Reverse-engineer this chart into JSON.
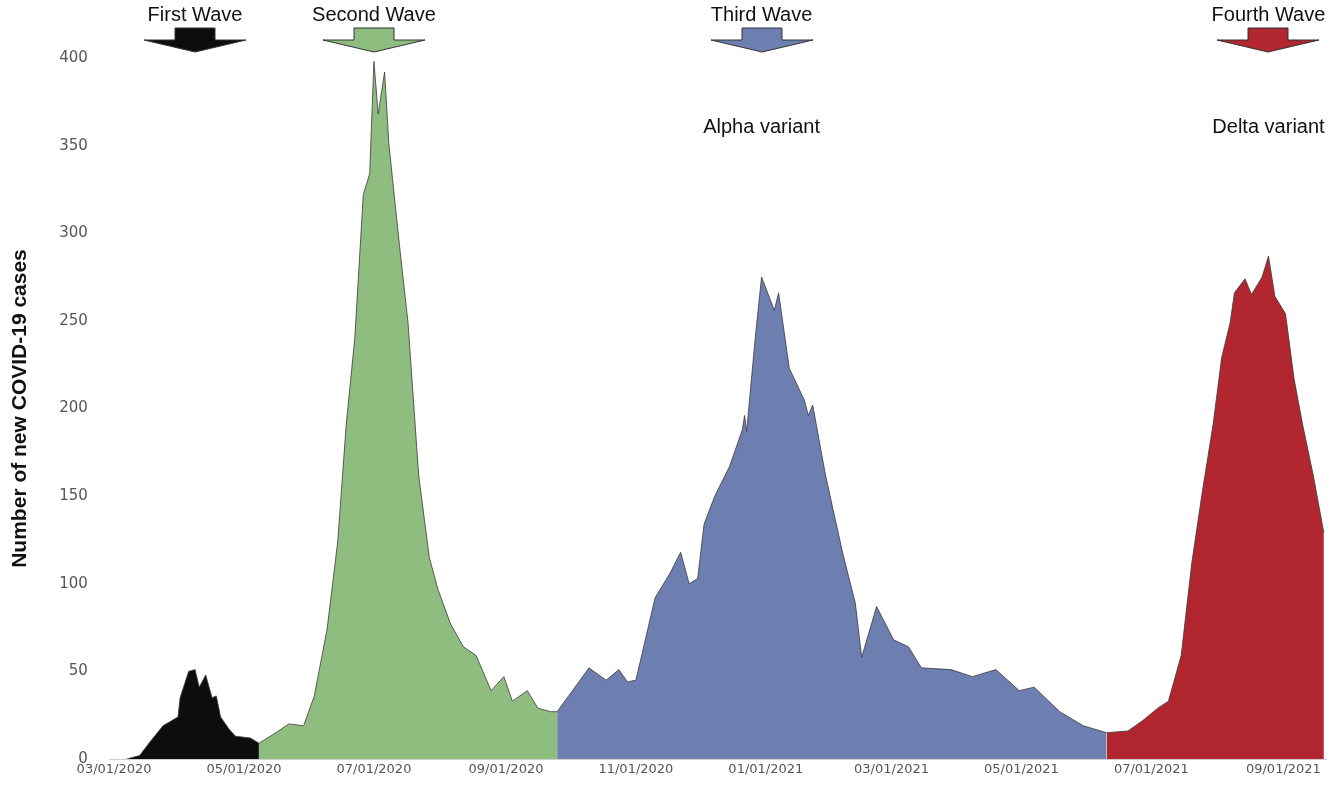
{
  "chart_data": {
    "type": "area",
    "ylabel": "Number of new COVID-19 cases",
    "xlim": [
      "2020-02-28",
      "2021-09-21"
    ],
    "ylim": [
      0,
      400
    ],
    "xticks": [
      {
        "value": "2020-03-01",
        "label": "03/01/2020"
      },
      {
        "value": "2020-05-01",
        "label": "05/01/2020"
      },
      {
        "value": "2020-07-01",
        "label": "07/01/2020"
      },
      {
        "value": "2020-09-01",
        "label": "09/01/2020"
      },
      {
        "value": "2020-11-01",
        "label": "11/01/2020"
      },
      {
        "value": "2021-01-01",
        "label": "01/01/2021"
      },
      {
        "value": "2021-03-01",
        "label": "03/01/2021"
      },
      {
        "value": "2021-05-01",
        "label": "05/01/2021"
      },
      {
        "value": "2021-07-01",
        "label": "07/01/2021"
      },
      {
        "value": "2021-09-01",
        "label": "09/01/2021"
      }
    ],
    "yticks": [
      0,
      50,
      100,
      150,
      200,
      250,
      300,
      350,
      400
    ],
    "grid": false,
    "marker": "none",
    "annotations": [
      "First Wave",
      "Second Wave",
      "Third Wave",
      "Fourth Wave",
      "Alpha variant",
      "Delta variant"
    ],
    "series": [
      {
        "color": "#0d0d0d",
        "x": [
          "2020-03-07",
          "2020-03-13",
          "2020-03-18",
          "2020-03-24",
          "2020-03-31",
          "2020-04-01",
          "2020-04-05",
          "2020-04-08",
          "2020-04-10",
          "2020-04-13",
          "2020-04-16",
          "2020-04-18",
          "2020-04-20",
          "2020-04-24",
          "2020-04-27",
          "2020-05-04",
          "2020-05-08"
        ],
        "values": [
          0,
          2,
          10,
          19,
          24,
          35,
          50,
          51,
          41,
          48,
          35,
          36,
          24,
          17,
          13,
          12,
          9
        ]
      },
      {
        "color": "#8fbc7f",
        "x": [
          "2020-05-08",
          "2020-05-16",
          "2020-05-22",
          "2020-05-29",
          "2020-06-03",
          "2020-06-09",
          "2020-06-14",
          "2020-06-18",
          "2020-06-22",
          "2020-06-26",
          "2020-06-29",
          "2020-07-01",
          "2020-07-03",
          "2020-07-06",
          "2020-07-08",
          "2020-07-13",
          "2020-07-17",
          "2020-07-22",
          "2020-07-27",
          "2020-07-31",
          "2020-08-06",
          "2020-08-12",
          "2020-08-18",
          "2020-08-25",
          "2020-08-31",
          "2020-09-04",
          "2020-09-11",
          "2020-09-16",
          "2020-09-22",
          "2020-09-25"
        ],
        "values": [
          9,
          15,
          20,
          19,
          36,
          74,
          124,
          191,
          240,
          322,
          334,
          398,
          368,
          392,
          351,
          293,
          249,
          162,
          115,
          97,
          77,
          64,
          59,
          39,
          47,
          33,
          39,
          29,
          27,
          27
        ]
      },
      {
        "color": "#6d7eb0",
        "x": [
          "2020-09-25",
          "2020-10-04",
          "2020-10-10",
          "2020-10-18",
          "2020-10-24",
          "2020-10-28",
          "2020-11-01",
          "2020-11-10",
          "2020-11-17",
          "2020-11-22",
          "2020-11-26",
          "2020-11-30",
          "2020-12-03",
          "2020-12-08",
          "2020-12-15",
          "2020-12-21",
          "2020-12-22",
          "2020-12-23",
          "2020-12-27",
          "2020-12-30",
          "2021-01-05",
          "2021-01-07",
          "2021-01-12",
          "2021-01-19",
          "2021-01-21",
          "2021-01-23",
          "2021-01-29",
          "2021-02-06",
          "2021-02-12",
          "2021-02-15",
          "2021-02-22",
          "2021-03-02",
          "2021-03-09",
          "2021-03-15",
          "2021-03-29",
          "2021-04-08",
          "2021-04-19",
          "2021-04-30",
          "2021-05-07",
          "2021-05-19",
          "2021-05-30",
          "2021-06-10"
        ],
        "values": [
          27,
          42,
          52,
          45,
          51,
          44,
          45,
          92,
          106,
          118,
          100,
          103,
          134,
          150,
          167,
          188,
          196,
          187,
          240,
          275,
          256,
          266,
          223,
          205,
          196,
          202,
          162,
          118,
          89,
          58,
          87,
          68,
          64,
          52,
          51,
          47,
          51,
          39,
          41,
          27,
          19,
          15
        ]
      },
      {
        "color": "#b22630",
        "x": [
          "2021-06-10",
          "2021-06-20",
          "2021-06-27",
          "2021-07-04",
          "2021-07-09",
          "2021-07-15",
          "2021-07-20",
          "2021-07-25",
          "2021-07-30",
          "2021-08-03",
          "2021-08-07",
          "2021-08-09",
          "2021-08-14",
          "2021-08-17",
          "2021-08-22",
          "2021-08-25",
          "2021-08-28",
          "2021-09-02",
          "2021-09-06",
          "2021-09-10",
          "2021-09-15",
          "2021-09-20"
        ],
        "values": [
          15,
          16,
          22,
          29,
          33,
          59,
          112,
          153,
          191,
          229,
          249,
          266,
          274,
          265,
          275,
          287,
          264,
          254,
          217,
          191,
          162,
          129
        ]
      }
    ]
  }
}
